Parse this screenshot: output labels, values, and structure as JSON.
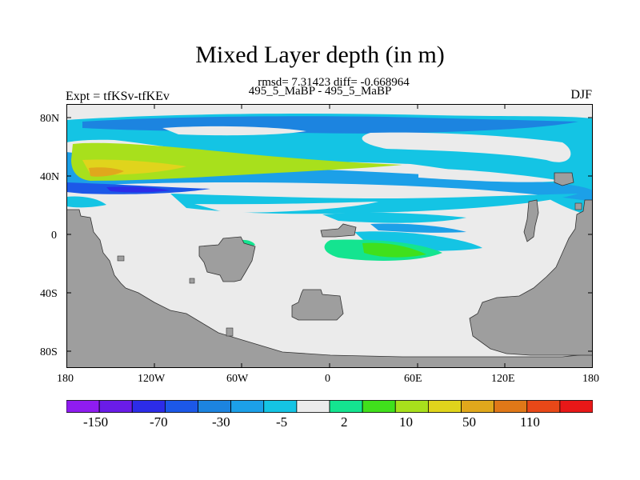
{
  "title": "Mixed Layer depth (in m)",
  "stats": "rmsd= 7.31423 diff= -0.668964",
  "subtitle": "495_5_MaBP - 495_5_MaBP",
  "left_label": "Expt = tfKSv-tfKEv",
  "right_label": "DJF",
  "lat_ticks": [
    "80N",
    "40N",
    "0",
    "40S",
    "80S"
  ],
  "lon_ticks": [
    "180",
    "120W",
    "60W",
    "0",
    "60E",
    "120E",
    "180"
  ],
  "colorbar": {
    "colors": [
      "#8f1cf0",
      "#6a1ce8",
      "#2c2ce8",
      "#1c58e8",
      "#1c84e0",
      "#1ca0e8",
      "#14c4e4",
      "#ebebeb",
      "#14e490",
      "#40e01c",
      "#a8e01c",
      "#e0d41c",
      "#e0a81c",
      "#e07818",
      "#e84818",
      "#e81818"
    ],
    "labels": [
      "-150",
      "-70",
      "-30",
      "-5",
      "2",
      "10",
      "50",
      "110"
    ]
  },
  "colors": {
    "land": "#9e9e9e",
    "neutral": "#ebebeb",
    "light_blue": "#14c4e4",
    "mid_blue": "#1ca0e8",
    "blue": "#1c84e0",
    "dark_blue": "#1c58e8",
    "deep_blue": "#2c2ce8",
    "green": "#14e490",
    "yellow_green": "#a8e01c",
    "yellow": "#e0d41c",
    "orange": "#e0a81c"
  }
}
